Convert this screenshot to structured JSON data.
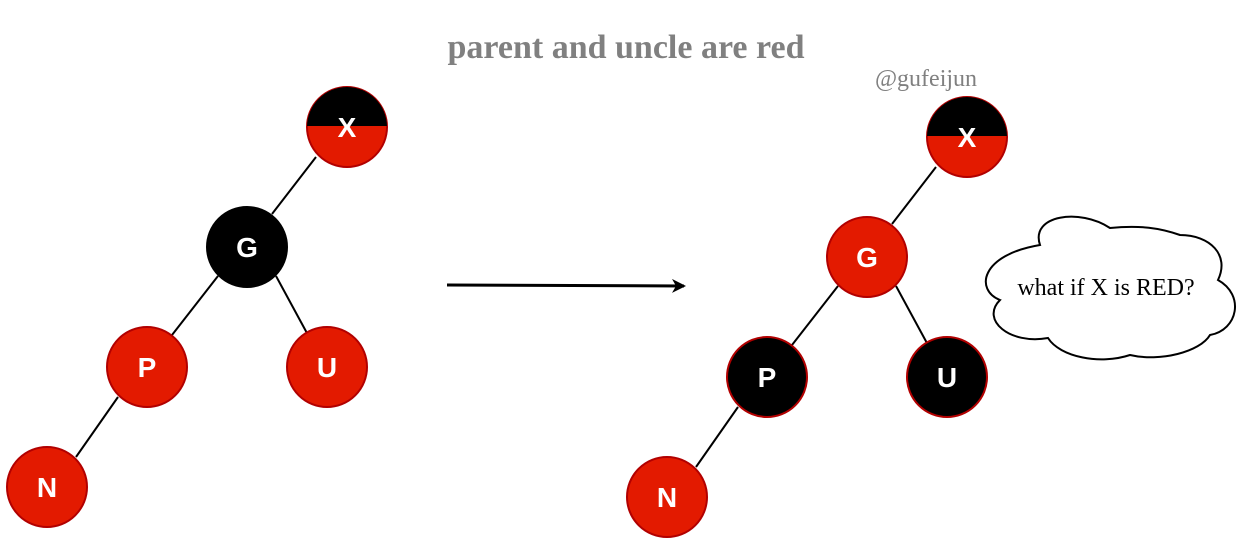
{
  "title": "parent and uncle are red",
  "credit": "@gufeijun",
  "cloud_text": "what if X is RED?",
  "colors": {
    "black": "#000000",
    "red": "#e31a00",
    "red_stroke": "#b20000",
    "edge": "#000000",
    "title": "#808080"
  },
  "before": {
    "nodes": {
      "x": {
        "label": "X",
        "color": "half-black-red"
      },
      "g": {
        "label": "G",
        "color": "black"
      },
      "p": {
        "label": "P",
        "color": "red"
      },
      "u": {
        "label": "U",
        "color": "red"
      },
      "n": {
        "label": "N",
        "color": "red"
      }
    }
  },
  "after": {
    "nodes": {
      "x": {
        "label": "X",
        "color": "half-black-red"
      },
      "g": {
        "label": "G",
        "color": "red"
      },
      "p": {
        "label": "P",
        "color": "black"
      },
      "u": {
        "label": "U",
        "color": "black"
      },
      "n": {
        "label": "N",
        "color": "red"
      }
    }
  }
}
